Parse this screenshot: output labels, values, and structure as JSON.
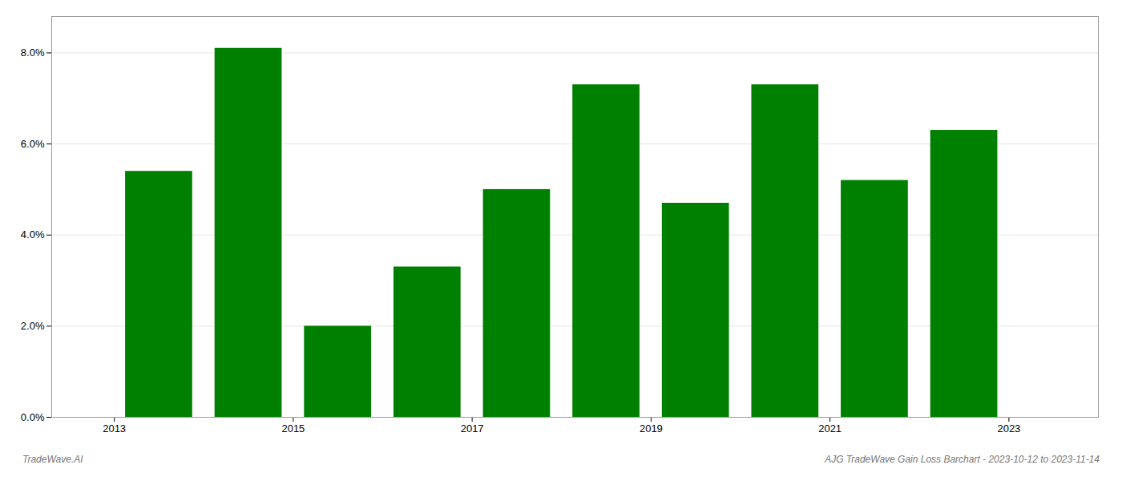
{
  "chart_data": {
    "type": "bar",
    "x": [
      2013,
      2014,
      2015,
      2016,
      2017,
      2018,
      2019,
      2020,
      2021,
      2022
    ],
    "values": [
      0.054,
      0.081,
      0.02,
      0.033,
      0.05,
      0.073,
      0.047,
      0.073,
      0.052,
      0.063
    ],
    "color": "#008000",
    "xlim": [
      2011.8,
      2023.5
    ],
    "xticks": [
      {
        "value": 2012.5,
        "label": "2013"
      },
      {
        "value": 2014.5,
        "label": "2015"
      },
      {
        "value": 2016.5,
        "label": "2017"
      },
      {
        "value": 2018.5,
        "label": "2019"
      },
      {
        "value": 2020.5,
        "label": "2021"
      },
      {
        "value": 2022.5,
        "label": "2023"
      }
    ],
    "ylim": [
      0,
      0.088
    ],
    "yticks": [
      {
        "value": 0.0,
        "label": "0.0%"
      },
      {
        "value": 0.02,
        "label": "2.0%"
      },
      {
        "value": 0.04,
        "label": "4.0%"
      },
      {
        "value": 0.06,
        "label": "6.0%"
      },
      {
        "value": 0.08,
        "label": "8.0%"
      }
    ],
    "grid": true,
    "annotations": [
      "TradeWave.AI",
      "AJG TradeWave Gain Loss Barchart - 2023-10-12 to 2023-11-14"
    ]
  }
}
